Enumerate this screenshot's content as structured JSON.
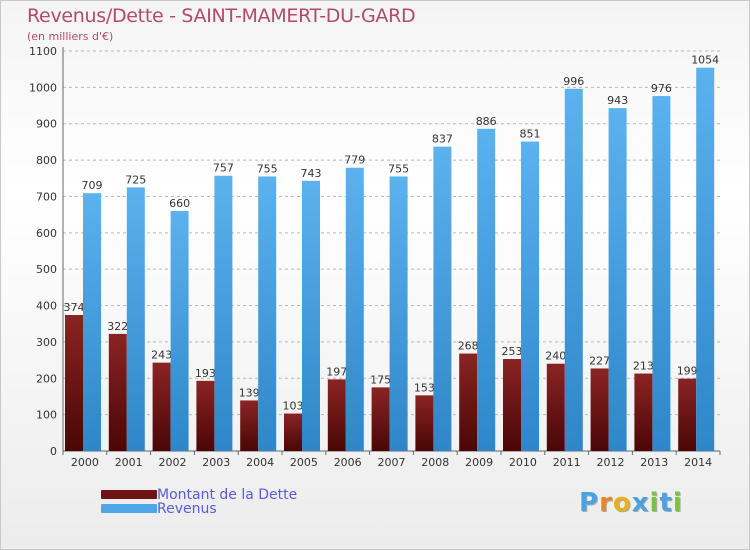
{
  "title": "Revenus/Dette - SAINT-MAMERT-DU-GARD",
  "subtitle": "(en milliers d'€)",
  "colors": {
    "dette": "#6e1414",
    "revenus": "#4ea6e6",
    "title": "#b04a6e",
    "legend_text": "#5a5ad8"
  },
  "chart_data": {
    "type": "bar",
    "title": "Revenus/Dette - SAINT-MAMERT-DU-GARD",
    "subtitle": "(en milliers d'€)",
    "xlabel": "",
    "ylabel": "",
    "ylim": [
      0,
      1100
    ],
    "yticks": [
      0,
      100,
      200,
      300,
      400,
      500,
      600,
      700,
      800,
      900,
      1000,
      1100
    ],
    "grid": "horizontal dashed",
    "legend_position": "bottom-left",
    "categories": [
      "2000",
      "2001",
      "2002",
      "2003",
      "2004",
      "2005",
      "2006",
      "2007",
      "2008",
      "2009",
      "2010",
      "2011",
      "2012",
      "2013",
      "2014"
    ],
    "series": [
      {
        "name": "Montant de la Dette",
        "values": [
          374,
          322,
          243,
          193,
          139,
          103,
          197,
          175,
          153,
          268,
          253,
          240,
          227,
          213,
          199
        ]
      },
      {
        "name": "Revenus",
        "values": [
          709,
          725,
          660,
          757,
          755,
          743,
          779,
          755,
          837,
          886,
          851,
          996,
          943,
          976,
          1054
        ]
      }
    ]
  },
  "legend": {
    "items": [
      {
        "label": "Montant de la Dette"
      },
      {
        "label": "Revenus"
      }
    ]
  },
  "logo": {
    "letters": [
      "P",
      "r",
      "o",
      "x",
      "i",
      "t",
      "i"
    ],
    "colors": [
      "#4aa3e0",
      "#e8862a",
      "#e8b020",
      "#4aa3e0",
      "#7cc242",
      "#4aa3e0",
      "#7cc242"
    ]
  }
}
